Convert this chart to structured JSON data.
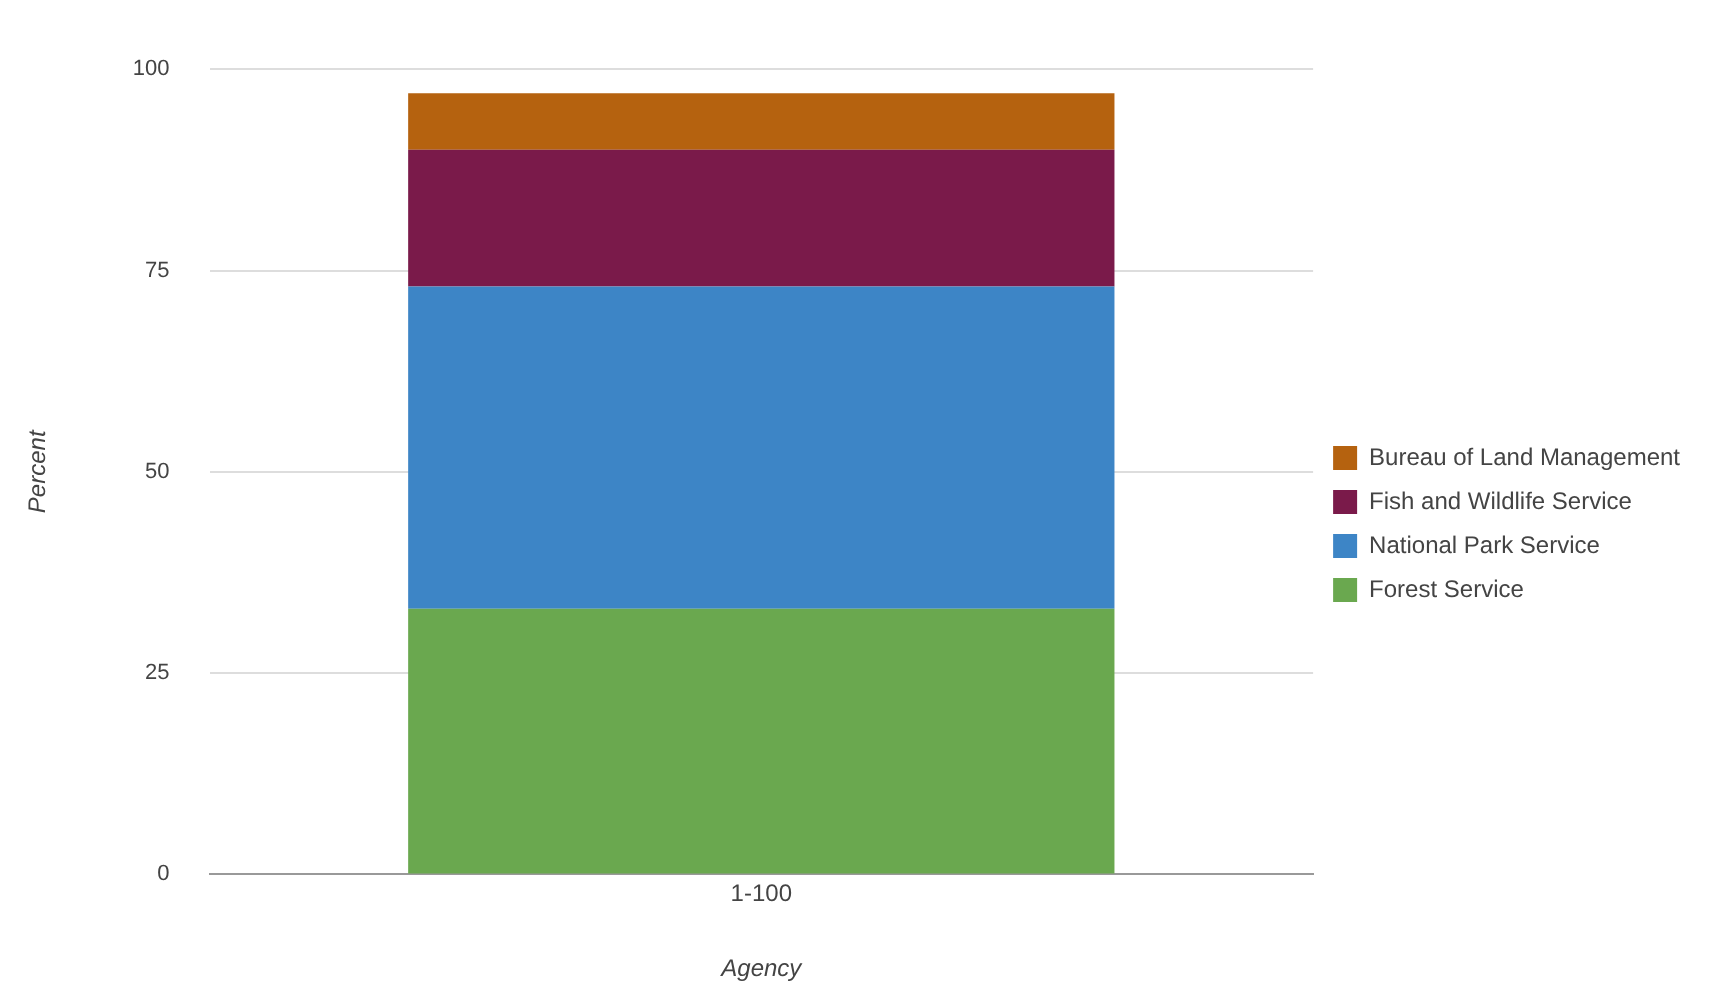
{
  "chart_data": {
    "type": "bar",
    "stacked": true,
    "categories": [
      "1-100"
    ],
    "xlabel": "Agency",
    "ylabel": "Percent",
    "ylim": [
      0,
      100
    ],
    "yticks": [
      0,
      25,
      50,
      75,
      100
    ],
    "grid": "y",
    "legend": "right",
    "series": [
      {
        "name": "Forest Service",
        "color": "#6aa84f",
        "values": [
          33
        ]
      },
      {
        "name": "National Park Service",
        "color": "#3d85c6",
        "values": [
          40
        ]
      },
      {
        "name": "Fish and Wildlife Service",
        "color": "#7a1a4a",
        "values": [
          17
        ]
      },
      {
        "name": "Bureau of Land Management",
        "color": "#b5620f",
        "values": [
          7
        ]
      }
    ]
  }
}
